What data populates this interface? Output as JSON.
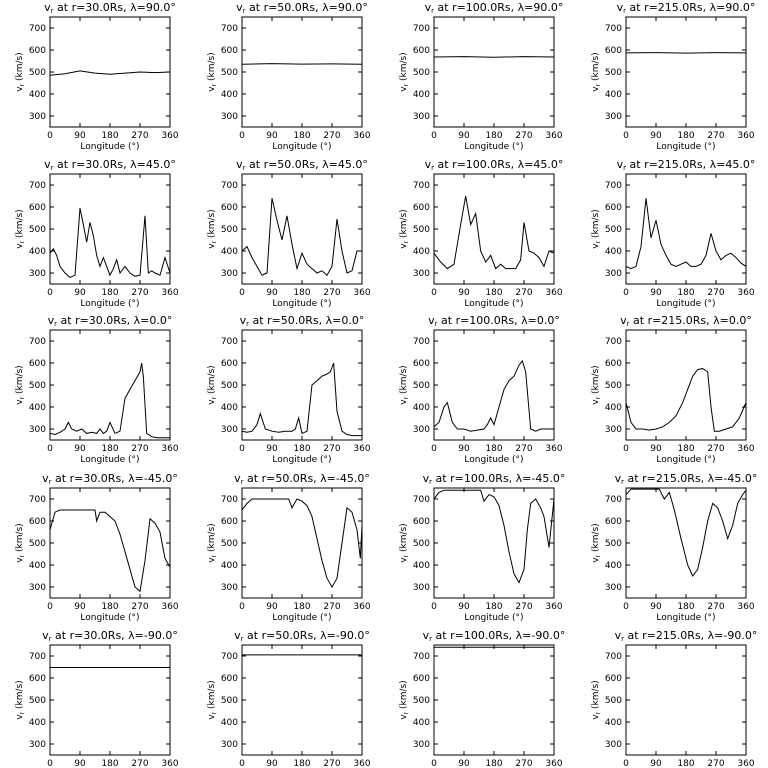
{
  "chart_data": {
    "type": "line",
    "xlabel": "Longitude (°)",
    "ylabel": "v_r (km/s)",
    "xlim": [
      0,
      360
    ],
    "ylim": [
      250,
      750
    ],
    "xticks": [
      0,
      90,
      180,
      270,
      360
    ],
    "yticks": [
      300,
      400,
      500,
      600,
      700
    ],
    "panels": [
      {
        "title": "vr at r=30.0Rs, λ=90.0°",
        "r": "30.0",
        "lat": "90.0",
        "x": [
          0,
          45,
          90,
          135,
          180,
          225,
          270,
          315,
          360
        ],
        "y": [
          485,
          492,
          505,
          495,
          490,
          495,
          500,
          497,
          500
        ]
      },
      {
        "title": "vr at r=50.0Rs, λ=90.0°",
        "r": "50.0",
        "lat": "90.0",
        "x": [
          0,
          90,
          180,
          270,
          360
        ],
        "y": [
          535,
          538,
          536,
          537,
          535
        ]
      },
      {
        "title": "vr at r=100.0Rs, λ=90.0°",
        "r": "100.0",
        "lat": "90.0",
        "x": [
          0,
          90,
          180,
          270,
          360
        ],
        "y": [
          568,
          570,
          567,
          570,
          568
        ]
      },
      {
        "title": "vr at r=215.0Rs, λ=90.0°",
        "r": "215.0",
        "lat": "90.0",
        "x": [
          0,
          90,
          180,
          270,
          360
        ],
        "y": [
          587,
          588,
          586,
          588,
          587
        ]
      },
      {
        "title": "vr at r=30.0Rs, λ=45.0°",
        "r": "30.0",
        "lat": "45.0",
        "x": [
          0,
          10,
          20,
          30,
          45,
          60,
          75,
          90,
          100,
          110,
          120,
          130,
          140,
          150,
          160,
          170,
          180,
          190,
          200,
          210,
          225,
          240,
          255,
          270,
          285,
          295,
          305,
          315,
          330,
          345,
          360
        ],
        "y": [
          390,
          410,
          380,
          330,
          300,
          280,
          290,
          595,
          520,
          440,
          530,
          470,
          380,
          330,
          370,
          330,
          290,
          320,
          360,
          300,
          330,
          300,
          285,
          290,
          560,
          300,
          310,
          300,
          290,
          370,
          300
        ]
      },
      {
        "title": "vr at r=50.0Rs, λ=45.0°",
        "r": "50.0",
        "lat": "45.0",
        "x": [
          0,
          15,
          30,
          45,
          60,
          75,
          90,
          105,
          120,
          135,
          150,
          165,
          180,
          195,
          210,
          225,
          240,
          255,
          270,
          285,
          300,
          315,
          330,
          345,
          360
        ],
        "y": [
          400,
          420,
          370,
          330,
          290,
          300,
          640,
          540,
          450,
          560,
          430,
          320,
          390,
          340,
          320,
          300,
          310,
          290,
          330,
          545,
          400,
          300,
          310,
          400,
          400
        ]
      },
      {
        "title": "vr at r=100.0Rs, λ=45.0°",
        "r": "100.0",
        "lat": "45.0",
        "x": [
          0,
          20,
          40,
          60,
          80,
          95,
          110,
          125,
          140,
          155,
          170,
          185,
          200,
          215,
          230,
          245,
          260,
          270,
          285,
          300,
          315,
          330,
          345,
          360
        ],
        "y": [
          390,
          350,
          320,
          340,
          520,
          650,
          520,
          570,
          400,
          350,
          380,
          320,
          340,
          320,
          320,
          320,
          360,
          530,
          400,
          390,
          370,
          330,
          400,
          390
        ]
      },
      {
        "title": "vr at r=215.0Rs, λ=45.0°",
        "r": "215.0",
        "lat": "45.0",
        "x": [
          0,
          15,
          30,
          45,
          60,
          75,
          90,
          105,
          120,
          135,
          150,
          165,
          180,
          195,
          210,
          225,
          240,
          255,
          270,
          285,
          300,
          315,
          330,
          345,
          360
        ],
        "y": [
          330,
          320,
          330,
          420,
          640,
          460,
          540,
          430,
          380,
          340,
          330,
          340,
          350,
          330,
          330,
          340,
          380,
          480,
          400,
          360,
          380,
          390,
          370,
          345,
          330
        ]
      },
      {
        "title": "vr at r=30.0Rs, λ=0.0°",
        "r": "30.0",
        "lat": "0.0",
        "x": [
          0,
          15,
          30,
          45,
          55,
          65,
          80,
          95,
          110,
          125,
          140,
          150,
          160,
          170,
          180,
          195,
          210,
          225,
          240,
          255,
          270,
          275,
          280,
          290,
          305,
          320,
          345,
          360
        ],
        "y": [
          280,
          275,
          285,
          300,
          330,
          300,
          290,
          300,
          280,
          285,
          280,
          300,
          280,
          290,
          330,
          280,
          290,
          440,
          480,
          520,
          560,
          600,
          540,
          280,
          265,
          260,
          260,
          260
        ]
      },
      {
        "title": "vr at r=50.0Rs, λ=0.0°",
        "r": "50.0",
        "lat": "0.0",
        "x": [
          0,
          15,
          30,
          45,
          55,
          70,
          90,
          110,
          130,
          150,
          160,
          170,
          180,
          195,
          210,
          225,
          240,
          255,
          265,
          275,
          285,
          300,
          315,
          330,
          345,
          360
        ],
        "y": [
          290,
          285,
          290,
          320,
          370,
          300,
          290,
          285,
          290,
          290,
          300,
          350,
          280,
          290,
          500,
          520,
          540,
          550,
          560,
          600,
          380,
          290,
          275,
          270,
          270,
          270
        ]
      },
      {
        "title": "vr at r=100.0Rs, λ=0.0°",
        "r": "100.0",
        "lat": "0.0",
        "x": [
          0,
          15,
          30,
          40,
          55,
          70,
          90,
          110,
          130,
          150,
          160,
          170,
          180,
          195,
          210,
          225,
          240,
          255,
          265,
          275,
          290,
          305,
          320,
          340,
          360
        ],
        "y": [
          310,
          330,
          400,
          420,
          330,
          300,
          300,
          290,
          295,
          300,
          320,
          350,
          320,
          400,
          480,
          520,
          540,
          590,
          610,
          560,
          300,
          290,
          300,
          300,
          300
        ]
      },
      {
        "title": "vr at r=215.0Rs, λ=0.0°",
        "r": "215.0",
        "lat": "0.0",
        "x": [
          0,
          15,
          30,
          50,
          70,
          90,
          110,
          130,
          150,
          170,
          185,
          200,
          215,
          230,
          245,
          255,
          265,
          280,
          300,
          320,
          340,
          360
        ],
        "y": [
          420,
          330,
          300,
          300,
          295,
          300,
          310,
          330,
          360,
          420,
          480,
          540,
          570,
          575,
          560,
          400,
          290,
          290,
          300,
          310,
          350,
          420
        ]
      },
      {
        "title": "vr at r=30.0Rs, λ=-45.0°",
        "r": "30.0",
        "lat": "-45.0",
        "x": [
          0,
          15,
          30,
          60,
          90,
          120,
          135,
          140,
          150,
          165,
          180,
          195,
          210,
          225,
          240,
          255,
          270,
          285,
          300,
          315,
          330,
          345,
          360
        ],
        "y": [
          560,
          640,
          650,
          650,
          650,
          650,
          650,
          600,
          640,
          640,
          620,
          600,
          540,
          460,
          380,
          300,
          280,
          420,
          610,
          590,
          550,
          430,
          390
        ]
      },
      {
        "title": "vr at r=50.0Rs, λ=-45.0°",
        "r": "50.0",
        "lat": "-45.0",
        "x": [
          0,
          15,
          30,
          60,
          90,
          120,
          140,
          150,
          165,
          180,
          195,
          210,
          225,
          240,
          255,
          270,
          285,
          300,
          315,
          330,
          345,
          355,
          360
        ],
        "y": [
          650,
          680,
          700,
          700,
          700,
          700,
          700,
          660,
          700,
          690,
          670,
          620,
          520,
          420,
          340,
          300,
          340,
          500,
          660,
          640,
          560,
          430,
          580
        ]
      },
      {
        "title": "vr at r=100.0Rs, λ=-45.0°",
        "r": "100.0",
        "lat": "-45.0",
        "x": [
          0,
          15,
          30,
          60,
          90,
          120,
          140,
          150,
          165,
          180,
          195,
          210,
          225,
          240,
          255,
          270,
          280,
          290,
          305,
          320,
          330,
          345,
          360
        ],
        "y": [
          700,
          730,
          740,
          740,
          740,
          740,
          740,
          690,
          720,
          710,
          670,
          580,
          460,
          360,
          320,
          380,
          560,
          680,
          700,
          660,
          620,
          480,
          700
        ]
      },
      {
        "title": "vr at r=215.0Rs, λ=-45.0°",
        "r": "215.0",
        "lat": "-45.0",
        "x": [
          0,
          15,
          30,
          45,
          60,
          80,
          100,
          115,
          130,
          145,
          165,
          185,
          200,
          215,
          230,
          245,
          260,
          275,
          290,
          305,
          320,
          335,
          350,
          360
        ],
        "y": [
          720,
          745,
          745,
          745,
          745,
          745,
          745,
          700,
          730,
          650,
          520,
          400,
          350,
          380,
          480,
          600,
          680,
          660,
          600,
          520,
          580,
          680,
          720,
          740
        ]
      },
      {
        "title": "vr at r=30.0Rs, λ=-90.0°",
        "r": "30.0",
        "lat": "-90.0",
        "x": [
          0,
          360
        ],
        "y": [
          648,
          648
        ]
      },
      {
        "title": "vr at r=50.0Rs, λ=-90.0°",
        "r": "50.0",
        "lat": "-90.0",
        "x": [
          0,
          360
        ],
        "y": [
          705,
          705
        ]
      },
      {
        "title": "vr at r=100.0Rs, λ=-90.0°",
        "r": "100.0",
        "lat": "-90.0",
        "x": [
          0,
          360
        ],
        "y": [
          740,
          740
        ]
      },
      {
        "title": "vr at r=215.0Rs, λ=-90.0°",
        "r": "215.0",
        "lat": "-90.0",
        "x": [
          0,
          360
        ],
        "y": [
          750,
          750
        ]
      }
    ]
  }
}
